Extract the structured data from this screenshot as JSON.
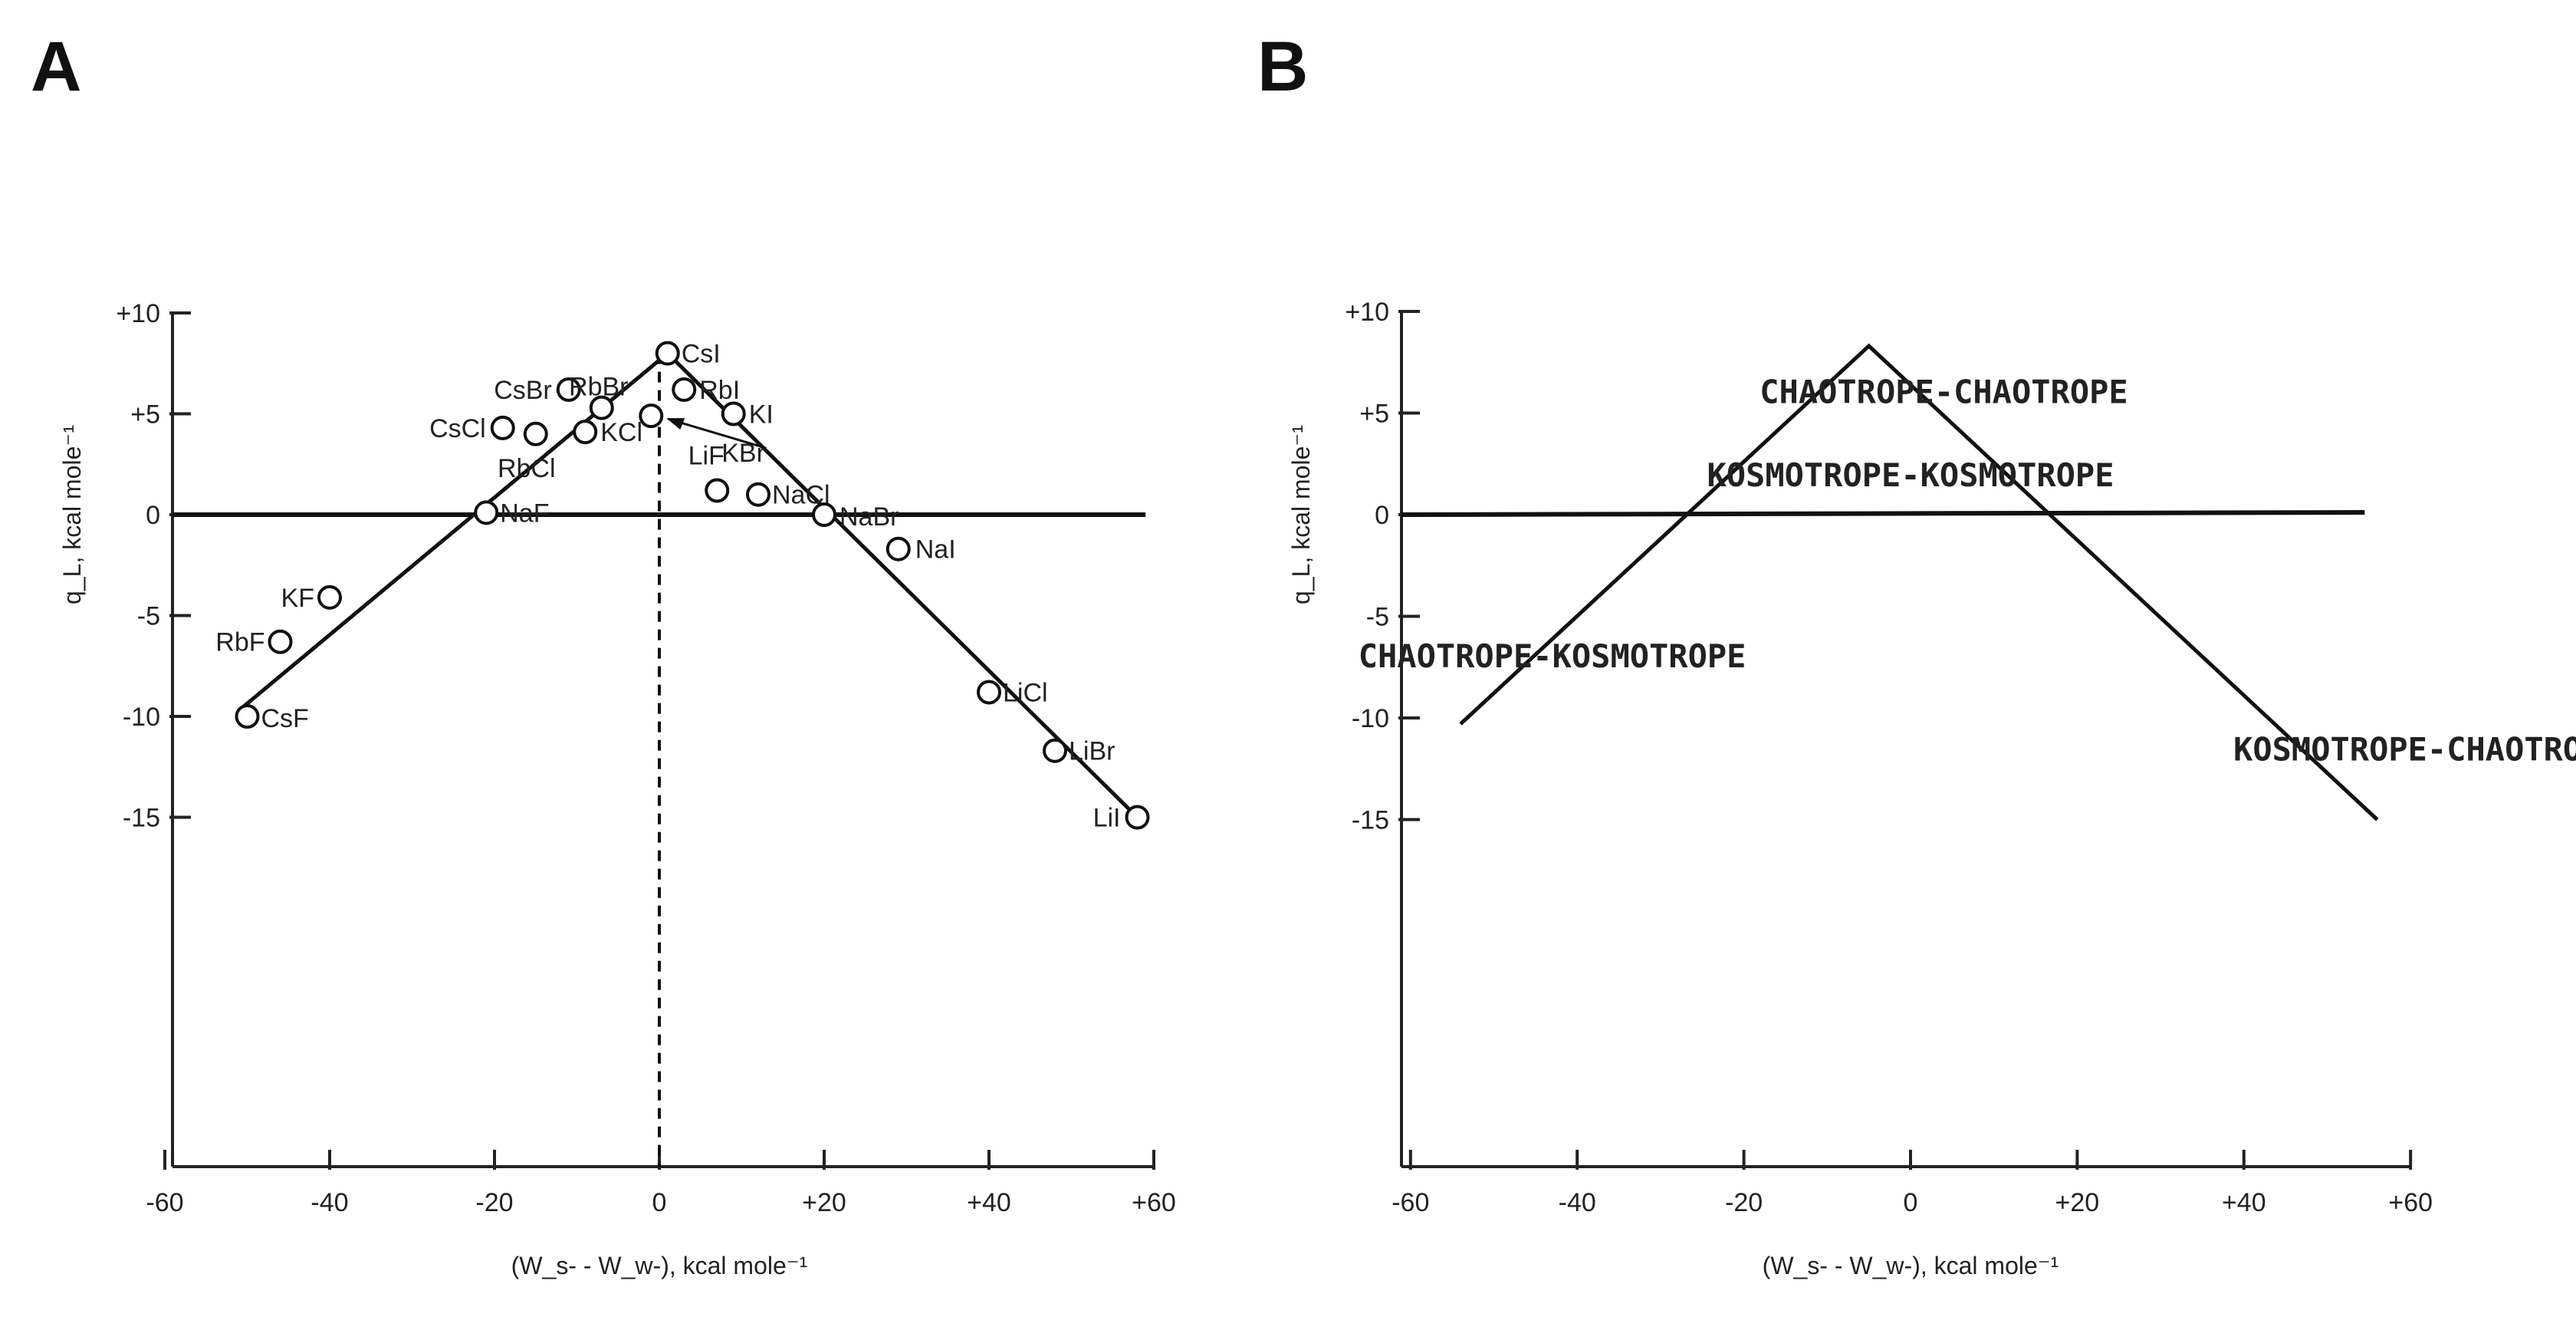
{
  "chart_data": [
    {
      "panel": "A",
      "type": "scatter",
      "xlabel": "(W_s- - W_w-), kcal mole⁻¹",
      "ylabel": "q_L, kcal mole⁻¹",
      "xlim": [
        -60,
        60
      ],
      "ylim": [
        -15.5,
        10
      ],
      "x_ticks": [
        -60,
        -40,
        -20,
        0,
        20,
        40,
        60
      ],
      "x_tick_labels": [
        "-60",
        "-40",
        "-20",
        "0",
        "+20",
        "+40",
        "+60"
      ],
      "y_ticks": [
        10,
        5,
        0,
        -5,
        -10,
        -15
      ],
      "y_tick_labels": [
        "+10",
        "+5",
        "0",
        "-5",
        "-10",
        "-15"
      ],
      "points": [
        {
          "label": "CsI",
          "x": 1,
          "y": 8
        },
        {
          "label": "CsBr",
          "x": -11,
          "y": 6.2
        },
        {
          "label": "RbBr",
          "x": -7,
          "y": 5.3
        },
        {
          "label": "RbI",
          "x": 3,
          "y": 6.2
        },
        {
          "label": "KI",
          "x": 9,
          "y": 5
        },
        {
          "label": "KBr",
          "x": -1,
          "y": 4.9
        },
        {
          "label": "CsCl",
          "x": -19,
          "y": 4.3
        },
        {
          "label": "RbCl",
          "x": -15,
          "y": 4
        },
        {
          "label": "KCl",
          "x": -9,
          "y": 4.1
        },
        {
          "label": "LiF",
          "x": 7,
          "y": 1.2
        },
        {
          "label": "NaCl",
          "x": 12,
          "y": 1
        },
        {
          "label": "NaF",
          "x": -21,
          "y": 0.1
        },
        {
          "label": "NaBr",
          "x": 20,
          "y": 0
        },
        {
          "label": "NaI",
          "x": 29,
          "y": -1.7
        },
        {
          "label": "KF",
          "x": -40,
          "y": -4.1
        },
        {
          "label": "RbF",
          "x": -46,
          "y": -6.3
        },
        {
          "label": "CsF",
          "x": -50,
          "y": -10
        },
        {
          "label": "LiCl",
          "x": 40,
          "y": -8.8
        },
        {
          "label": "LiBr",
          "x": 48,
          "y": -11.7
        },
        {
          "label": "LiI",
          "x": 58,
          "y": -15
        }
      ],
      "lines": [
        {
          "x": [
            -51,
            1,
            58
          ],
          "y": [
            -9.7,
            8,
            -15
          ]
        }
      ],
      "hline": 0,
      "vline": 0
    },
    {
      "panel": "B",
      "type": "line",
      "xlabel": "(W_s- - W_w-), kcal mole⁻¹",
      "ylabel": "q_L, kcal mole⁻¹",
      "xlim": [
        -60,
        60
      ],
      "ylim": [
        -15.5,
        10
      ],
      "x_ticks": [
        -60,
        -40,
        -20,
        0,
        20,
        40,
        60
      ],
      "x_tick_labels": [
        "-60",
        "-40",
        "-20",
        "0",
        "+20",
        "+40",
        "+60"
      ],
      "y_ticks": [
        10,
        5,
        0,
        -5,
        -10,
        -15
      ],
      "y_tick_labels": [
        "+10",
        "+5",
        "0",
        "-5",
        "-10",
        "-15"
      ],
      "lines": [
        {
          "x": [
            -54,
            -5,
            56
          ],
          "y": [
            -10.3,
            8.3,
            -15
          ]
        }
      ],
      "hline": 0,
      "regions": [
        {
          "label": "CHAOTROPE-CHAOTROPE",
          "x": 4,
          "y": 5.5
        },
        {
          "label": "KOSMOTROPE-KOSMOTROPE",
          "x": 0,
          "y": 1.4
        },
        {
          "label": "CHAOTROPE-KOSMOTROPE",
          "x": -43,
          "y": -7.5
        },
        {
          "label": "KOSMOTROPE-CHAOTROPE",
          "x": 62,
          "y": -12.1
        }
      ]
    }
  ],
  "panels": {
    "a": {
      "letter": "A"
    },
    "b": {
      "letter": "B"
    }
  },
  "colors": {
    "ink": "#111111",
    "background": "#ffffff"
  }
}
